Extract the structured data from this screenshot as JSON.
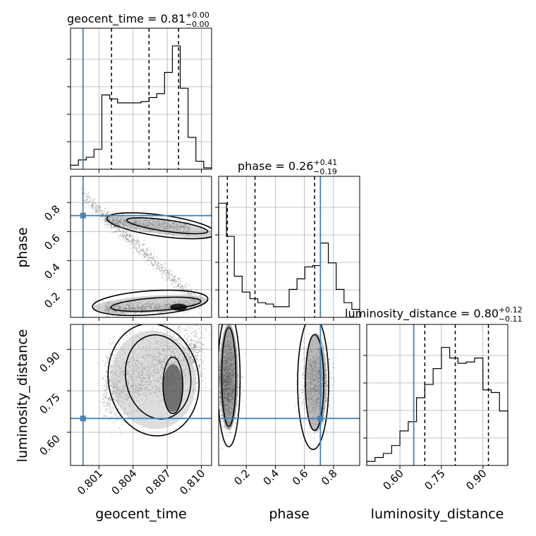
{
  "chart_data": {
    "type": "corner",
    "parameters": [
      "geocent_time",
      "phase",
      "luminosity_distance"
    ],
    "titles": {
      "geocent_time": {
        "name": "geocent_time",
        "median": "0.81",
        "plus": "+0.00",
        "minus": "−0.00"
      },
      "phase": {
        "name": "phase",
        "median": "0.26",
        "plus": "+0.41",
        "minus": "−0.19"
      },
      "luminosity_distance": {
        "name": "luminosity_distance",
        "median": "0.80",
        "plus": "+0.12",
        "minus": "−0.11"
      }
    },
    "ranges": {
      "geocent_time": [
        0.7985,
        0.8109
      ],
      "phase": [
        0.01,
        0.98
      ],
      "luminosity_distance": [
        0.48,
        0.99
      ]
    },
    "ticks": {
      "geocent_time": [
        0.801,
        0.804,
        0.807,
        0.81
      ],
      "phase": [
        0.2,
        0.4,
        0.6,
        0.8
      ],
      "luminosity_distance": [
        0.6,
        0.75,
        0.9
      ]
    },
    "tick_labels": {
      "geocent_time": [
        "0.801",
        "0.804",
        "0.807",
        "0.810"
      ],
      "phase": [
        "0.2",
        "0.4",
        "0.6",
        "0.8"
      ],
      "luminosity_distance": [
        "0.60",
        "0.75",
        "0.90"
      ]
    },
    "truths": {
      "geocent_time": 0.7996,
      "phase": 0.71,
      "luminosity_distance": 0.65
    },
    "quantiles": {
      "geocent_time": [
        0.8021,
        0.8054,
        0.808
      ],
      "phase": [
        0.07,
        0.26,
        0.67
      ],
      "luminosity_distance": [
        0.69,
        0.8,
        0.92
      ]
    },
    "histograms": {
      "geocent_time": [
        0.02,
        0.06,
        0.08,
        0.14,
        0.55,
        0.52,
        0.49,
        0.49,
        0.49,
        0.5,
        0.53,
        0.56,
        0.72,
        0.92,
        0.6,
        0.23,
        0.05,
        0.0
      ],
      "phase": [
        0.85,
        0.6,
        0.3,
        0.18,
        0.13,
        0.1,
        0.09,
        0.07,
        0.07,
        0.2,
        0.28,
        0.37,
        0.38,
        0.55,
        0.4,
        0.2,
        0.1,
        0.05
      ],
      "luminosity_distance": [
        0.02,
        0.05,
        0.08,
        0.14,
        0.25,
        0.32,
        0.5,
        0.6,
        0.72,
        0.88,
        0.8,
        0.76,
        0.77,
        0.8,
        0.56,
        0.54,
        0.4
      ]
    },
    "truth_color": "#4682b4",
    "line_color": "#000000",
    "grid": true
  }
}
